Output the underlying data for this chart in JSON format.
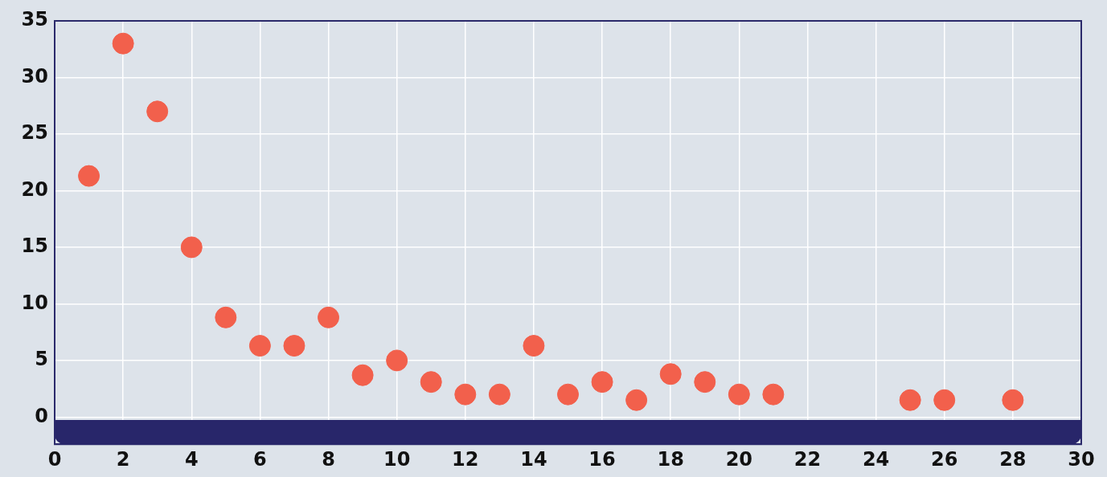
{
  "chart_data": {
    "type": "scatter",
    "x": [
      1,
      2,
      3,
      4,
      5,
      6,
      7,
      8,
      9,
      10,
      11,
      12,
      13,
      14,
      15,
      16,
      17,
      18,
      19,
      20,
      21,
      25,
      26,
      28
    ],
    "values": [
      21.3,
      33,
      27,
      15,
      8.8,
      6.3,
      6.3,
      8.8,
      3.7,
      5,
      3.1,
      2,
      2,
      6.3,
      2,
      3.1,
      1.5,
      3.8,
      3.1,
      2,
      2,
      1.5,
      1.5,
      1.5
    ],
    "color": "#f2604c",
    "xlim": [
      0,
      30
    ],
    "xticks": [
      0,
      2,
      4,
      6,
      8,
      10,
      12,
      14,
      16,
      18,
      20,
      22,
      24,
      26,
      28,
      30
    ],
    "ylim": [
      -2.4,
      35
    ],
    "yticks": [
      0,
      5,
      10,
      15,
      20,
      25,
      30,
      35
    ],
    "grid": true,
    "marker": "circle"
  }
}
